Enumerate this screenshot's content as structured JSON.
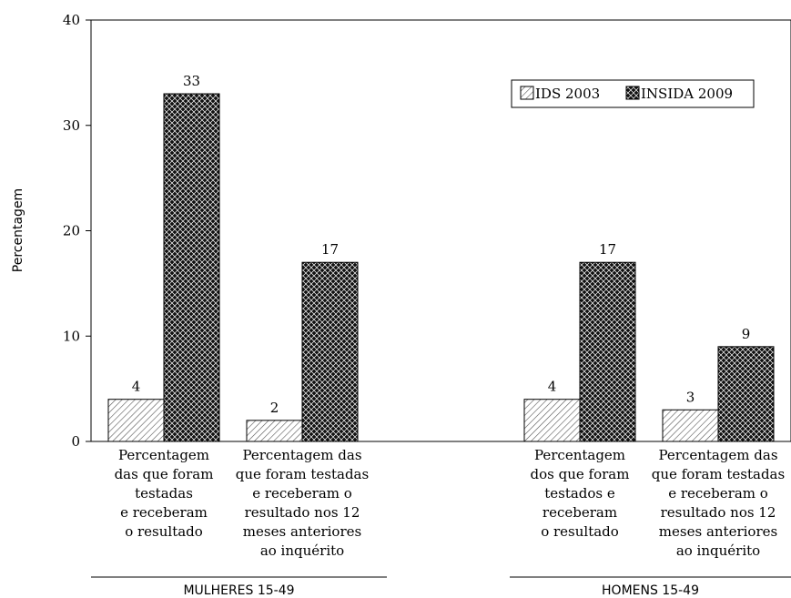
{
  "chart_data": {
    "type": "bar",
    "ylabel": "Percentagem",
    "ylim": [
      0,
      40
    ],
    "yticks": [
      0,
      10,
      20,
      30,
      40
    ],
    "grid": false,
    "legend_position": "top-right",
    "series": [
      {
        "name": "IDS 2003",
        "values": [
          4,
          2,
          4,
          3
        ]
      },
      {
        "name": "INSIDA 2009",
        "values": [
          33,
          17,
          17,
          9
        ]
      }
    ],
    "categories": [
      [
        "Percentagem",
        "das que foram",
        "testadas",
        "e receberam",
        "o resultado"
      ],
      [
        "Percentagem das",
        "que foram testadas",
        "e receberam o",
        "resultado nos 12",
        "meses anteriores",
        "ao inquérito"
      ],
      [
        "Percentagem",
        "dos que foram",
        "testados e",
        "receberam",
        "o resultado"
      ],
      [
        "Percentagem das",
        "que foram testadas",
        "e receberam o",
        "resultado nos 12",
        "meses anteriores",
        "ao inquérito"
      ]
    ],
    "groups": [
      {
        "label": "MULHERES 15-49"
      },
      {
        "label": "HOMENS 15-49"
      }
    ]
  }
}
